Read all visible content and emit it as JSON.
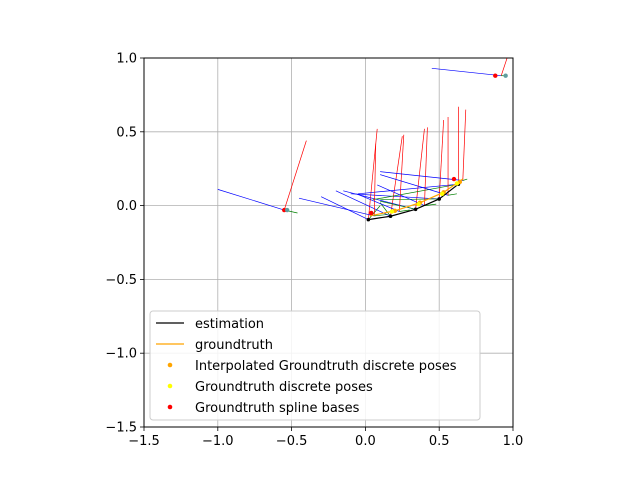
{
  "chart_data": {
    "type": "line",
    "title": "",
    "xlabel": "",
    "ylabel": "",
    "xlim": [
      -1.5,
      1.0
    ],
    "ylim": [
      -1.5,
      1.0
    ],
    "xticks": [
      -1.5,
      -1.0,
      -0.5,
      0.0,
      0.5,
      1.0
    ],
    "yticks": [
      -1.5,
      -1.0,
      -0.5,
      0.0,
      0.5,
      1.0
    ],
    "xtick_labels": [
      "−1.5",
      "−1.0",
      "−0.5",
      "0.0",
      "0.5",
      "1.0"
    ],
    "ytick_labels": [
      "−1.5",
      "−1.0",
      "−0.5",
      "0.0",
      "0.5",
      "1.0"
    ],
    "grid": true,
    "legend_position": "lower-right",
    "legend": [
      {
        "label": "estimation",
        "kind": "line",
        "color": "#000000"
      },
      {
        "label": "groundtruth",
        "kind": "line",
        "color": "#ffa500"
      },
      {
        "label": "Interpolated Groundtruth discrete poses",
        "kind": "point",
        "color": "#ffa500"
      },
      {
        "label": "Groundtruth discrete poses",
        "kind": "point",
        "color": "#ffff00"
      },
      {
        "label": "Groundtruth spline bases",
        "kind": "point",
        "color": "#ff0000"
      }
    ],
    "series": [
      {
        "name": "estimation",
        "color": "#000000",
        "x": [
          0.02,
          0.17,
          0.34,
          0.5,
          0.63
        ],
        "y": [
          -0.095,
          -0.072,
          -0.025,
          0.045,
          0.145
        ]
      },
      {
        "name": "groundtruth",
        "color": "#ffa500",
        "x": [
          0.03,
          0.2,
          0.37,
          0.53,
          0.66
        ],
        "y": [
          -0.07,
          -0.035,
          0.02,
          0.09,
          0.18
        ]
      },
      {
        "name": "Interpolated Groundtruth discrete poses",
        "color": "#ffa500",
        "x": [
          0.2,
          0.37,
          0.53,
          0.64
        ],
        "y": [
          -0.035,
          0.02,
          0.09,
          0.16
        ]
      },
      {
        "name": "Groundtruth discrete poses",
        "color": "#ffff00",
        "x": [
          0.18,
          0.36,
          0.52,
          0.62
        ],
        "y": [
          -0.04,
          0.01,
          0.08,
          0.15
        ]
      },
      {
        "name": "Groundtruth spline bases",
        "color": "#ff0000",
        "x": [
          -0.55,
          0.04,
          0.88,
          0.6
        ],
        "y": [
          -0.03,
          -0.05,
          0.88,
          0.18
        ]
      }
    ],
    "extra_points": [
      {
        "x": 0.95,
        "y": 0.88,
        "color": "#5f9ea0"
      },
      {
        "x": -0.53,
        "y": -0.03,
        "color": "#5f9ea0"
      }
    ],
    "pose_axes": [
      {
        "x": 0.02,
        "y": -0.095,
        "bx": -0.3,
        "by": 0.06,
        "rx": 0.08,
        "ry": 0.52,
        "gx": 0.1,
        "gy": 0.0
      },
      {
        "x": 0.17,
        "y": -0.072,
        "bx": -0.2,
        "by": 0.1,
        "rx": 0.25,
        "ry": 0.47,
        "gx": 0.1,
        "gy": 0.02
      },
      {
        "x": 0.34,
        "y": -0.025,
        "bx": -0.15,
        "by": 0.1,
        "rx": 0.4,
        "ry": 0.52,
        "gx": 0.1,
        "gy": 0.03
      },
      {
        "x": 0.5,
        "y": 0.045,
        "bx": -0.1,
        "by": 0.08,
        "rx": 0.53,
        "ry": 0.58,
        "gx": 0.1,
        "gy": 0.04
      },
      {
        "x": 0.63,
        "y": 0.145,
        "bx": -0.05,
        "by": 0.08,
        "rx": 0.63,
        "ry": 0.67,
        "gx": 0.05,
        "gy": 0.04
      },
      {
        "x": -0.55,
        "y": -0.03,
        "bx": -1.0,
        "by": 0.11,
        "rx": -0.4,
        "ry": 0.44,
        "gx": -0.46,
        "gy": -0.05
      },
      {
        "x": 0.92,
        "y": 0.88,
        "bx": 0.45,
        "by": 0.93,
        "rx": 0.96,
        "ry": 1.0,
        "gx": 0.96,
        "gy": 0.88
      }
    ],
    "pose_axes_extra": [
      {
        "x": 0.06,
        "y": -0.07,
        "bx": -0.45,
        "by": 0.05,
        "rx": 0.07,
        "ry": 0.42,
        "gx": 0.15,
        "gy": -0.06
      },
      {
        "x": 0.23,
        "y": -0.04,
        "bx": -0.06,
        "by": 0.08,
        "rx": 0.26,
        "ry": 0.48,
        "gx": 0.3,
        "gy": -0.03
      },
      {
        "x": 0.4,
        "y": 0.0,
        "bx": 0.08,
        "by": 0.14,
        "rx": 0.42,
        "ry": 0.53,
        "gx": 0.48,
        "gy": 0.01
      },
      {
        "x": 0.56,
        "y": 0.07,
        "bx": 0.1,
        "by": 0.21,
        "rx": 0.56,
        "ry": 0.6,
        "gx": 0.62,
        "gy": 0.08
      },
      {
        "x": 0.66,
        "y": 0.17,
        "bx": 0.1,
        "by": 0.23,
        "rx": 0.68,
        "ry": 0.65,
        "gx": 0.69,
        "gy": 0.18
      }
    ]
  }
}
